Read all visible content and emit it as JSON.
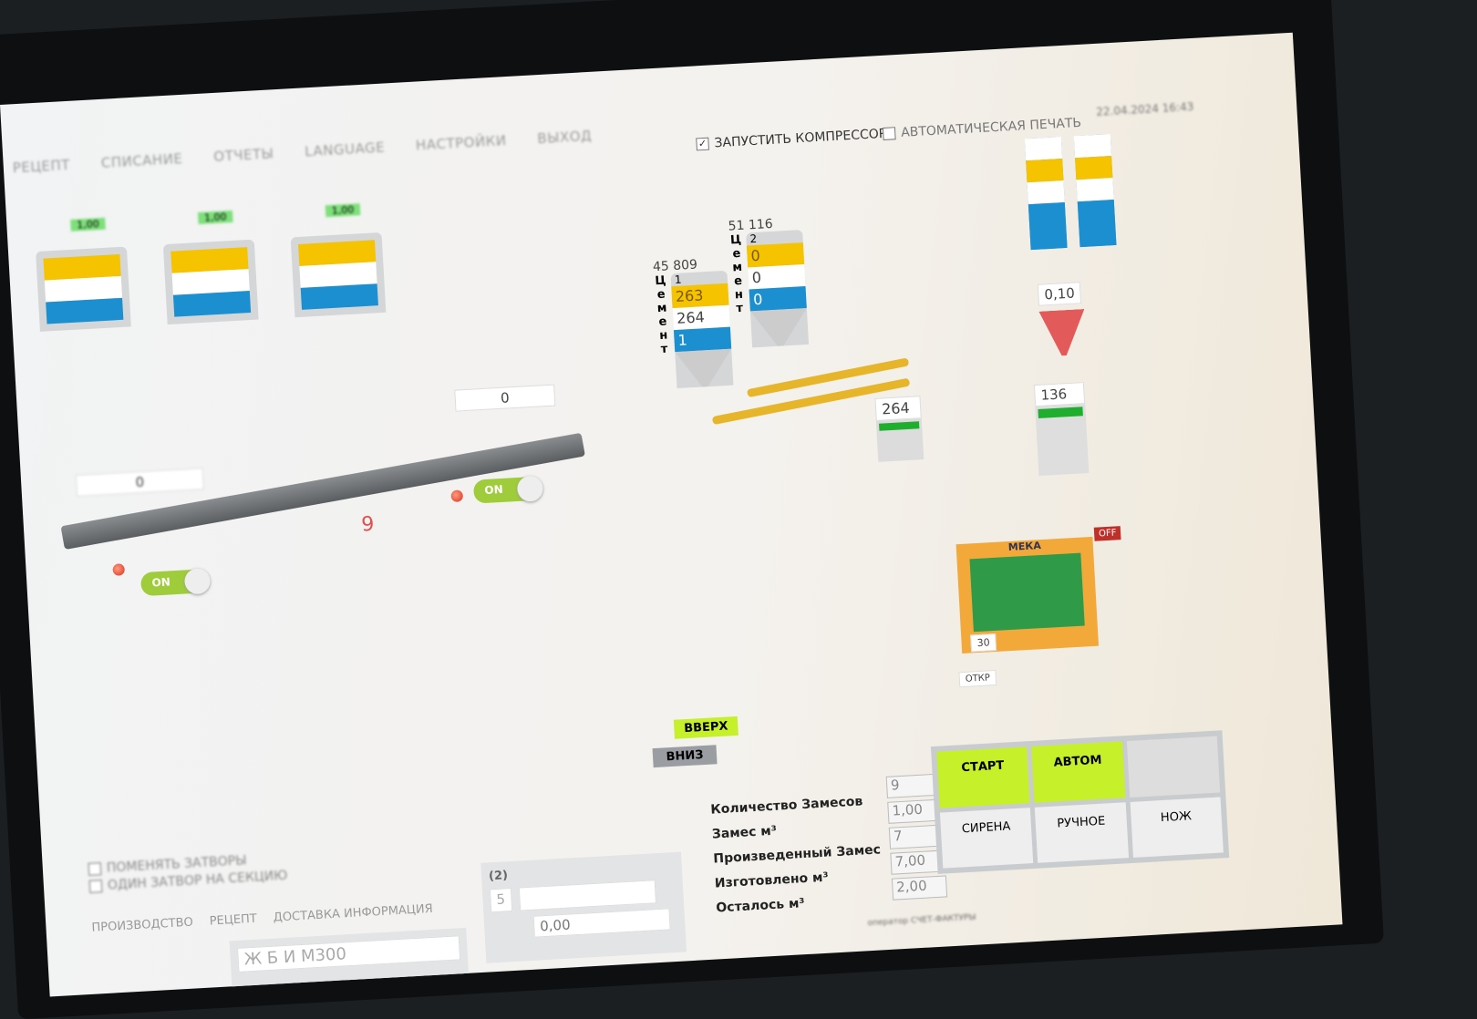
{
  "menu": [
    "РЕЦЕПТ",
    "СПИСАНИЕ",
    "ОТЧЕТЫ",
    "LANGUAGE",
    "НАСТРОЙКИ",
    "ВЫХОД"
  ],
  "header": {
    "compressor_label": "ЗАПУСТИТЬ КОМПРЕССОР",
    "compressor_checked": true,
    "autoprint_label": "АВТОМАТИЧЕСКАЯ ПЕЧАТЬ",
    "autoprint_checked": false,
    "datetime": "22.04.2024 16:43"
  },
  "aggregates": [
    {
      "value": "1,00"
    },
    {
      "value": "1,00"
    },
    {
      "value": "1,00"
    }
  ],
  "conveyor": {
    "top_value": "0",
    "bottom_value": "0",
    "count": "9",
    "toggle1": "ON",
    "toggle2": "ON"
  },
  "cement": [
    {
      "total": "45 809",
      "label": "Цемент",
      "index": "1",
      "target": "263",
      "actual": "264",
      "diff": "1"
    },
    {
      "total": "51 116",
      "label": "Цемент",
      "index": "2",
      "target": "0",
      "actual": "0",
      "diff": "0"
    }
  ],
  "cement_hopper": {
    "value": "264"
  },
  "chemicals": {
    "dose": "0,10"
  },
  "water": {
    "value": "136"
  },
  "mixer": {
    "name": "МЕКА",
    "off_label": "OFF",
    "gate_value": "30",
    "open_label": "ОТКР"
  },
  "lift": {
    "up": "ВВЕРХ",
    "down": "ВНИЗ"
  },
  "stats": [
    {
      "label": "Количество Замесов",
      "value": "9"
    },
    {
      "label": "Замес м³",
      "value": "1,00"
    },
    {
      "label": "Произведенный Замес",
      "value": "7"
    },
    {
      "label": "Изготовлено м³",
      "value": "7,00"
    },
    {
      "label": "Осталось м³",
      "value": "2,00"
    }
  ],
  "controls": {
    "start": "СТАРТ",
    "auto": "АВТОМ",
    "manual": "РУЧНОЕ",
    "siren": "СИРЕНА",
    "knife": "НОЖ"
  },
  "options": [
    "ПОМЕНЯТЬ ЗАТВОРЫ",
    "ОДИН ЗАТВОР НА СЕКЦИЮ"
  ],
  "tabs": [
    "ПРОИЗВОДСТВО",
    "РЕЦЕПТ",
    "ДОСТАВКА ИНФОРМАЦИЯ"
  ],
  "order": {
    "recipe": "Ж Б И М300",
    "group_label": "(2)",
    "qty": "5",
    "volume": "0,00"
  },
  "status_bar": "оператор  СЧЕТ-ФАКТУРЫ",
  "colors": {
    "yellow": "#f5c300",
    "blue": "#1c8fd0",
    "lime": "#c6f02a",
    "green": "#1fae2e"
  }
}
